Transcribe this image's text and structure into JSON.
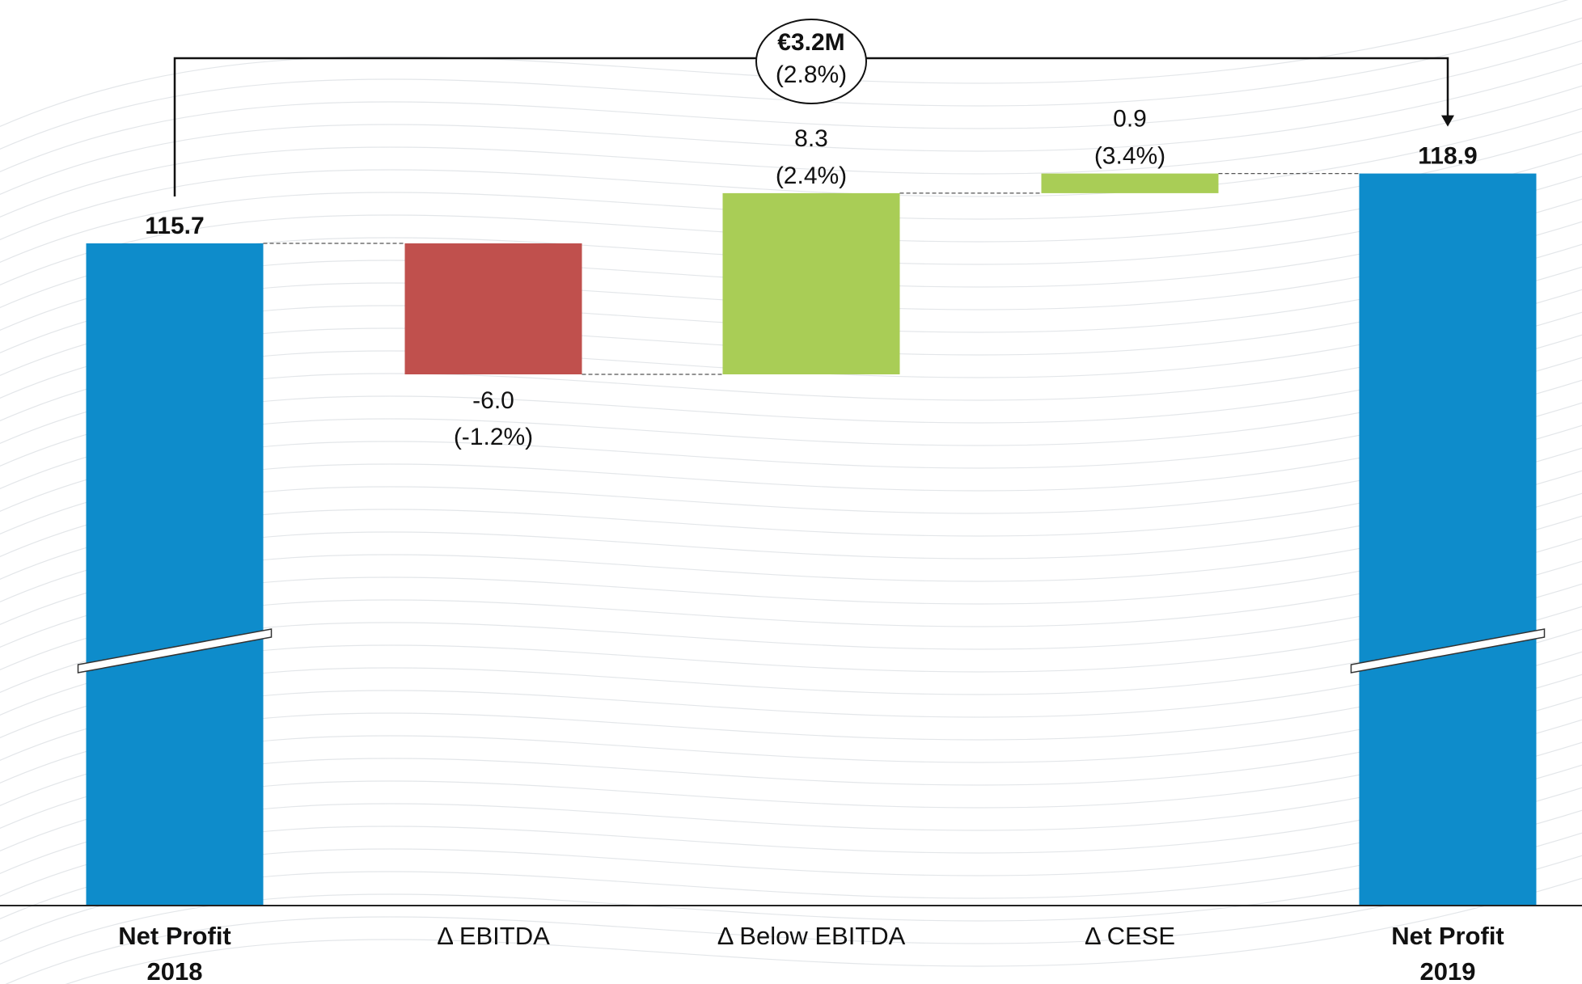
{
  "chart_data": {
    "type": "bar",
    "subtype": "waterfall",
    "categories": [
      {
        "line1": "Net Profit",
        "line2": "2018",
        "bold": true
      },
      {
        "line1": "Δ EBITDA",
        "line2": "",
        "bold": false
      },
      {
        "line1": "Δ Below EBITDA",
        "line2": "",
        "bold": false
      },
      {
        "line1": "Δ CESE",
        "line2": "",
        "bold": false
      },
      {
        "line1": "Net Profit",
        "line2": "2019",
        "bold": true
      }
    ],
    "bars": [
      {
        "kind": "total",
        "value": 115.7,
        "value_label": "115.7",
        "pct_label": "",
        "color": "#0e8ccb",
        "broken_axis": true
      },
      {
        "kind": "delta",
        "value": -6.0,
        "value_label": "-6.0",
        "pct_label": "(-1.2%)",
        "color": "#c0504d",
        "broken_axis": false
      },
      {
        "kind": "delta",
        "value": 8.3,
        "value_label": "8.3",
        "pct_label": "(2.4%)",
        "color": "#a9cd56",
        "broken_axis": false
      },
      {
        "kind": "delta",
        "value": 0.9,
        "value_label": "0.9",
        "pct_label": "(3.4%)",
        "color": "#a9cd56",
        "broken_axis": false
      },
      {
        "kind": "total",
        "value": 118.9,
        "value_label": "118.9",
        "pct_label": "",
        "color": "#0e8ccb",
        "broken_axis": true
      }
    ],
    "total_change": {
      "value_label": "€3.2M",
      "pct_label": "(2.8%)"
    },
    "scale_note": "axis is broken on total bars; delta bars drawn to an exaggerated scale",
    "grid": false,
    "legend": "none",
    "title": "",
    "xlabel": "",
    "ylabel": ""
  },
  "colors": {
    "total": "#0e8ccb",
    "negative": "#c0504d",
    "positive": "#a9cd56",
    "background_lines": "#d9dde2"
  }
}
